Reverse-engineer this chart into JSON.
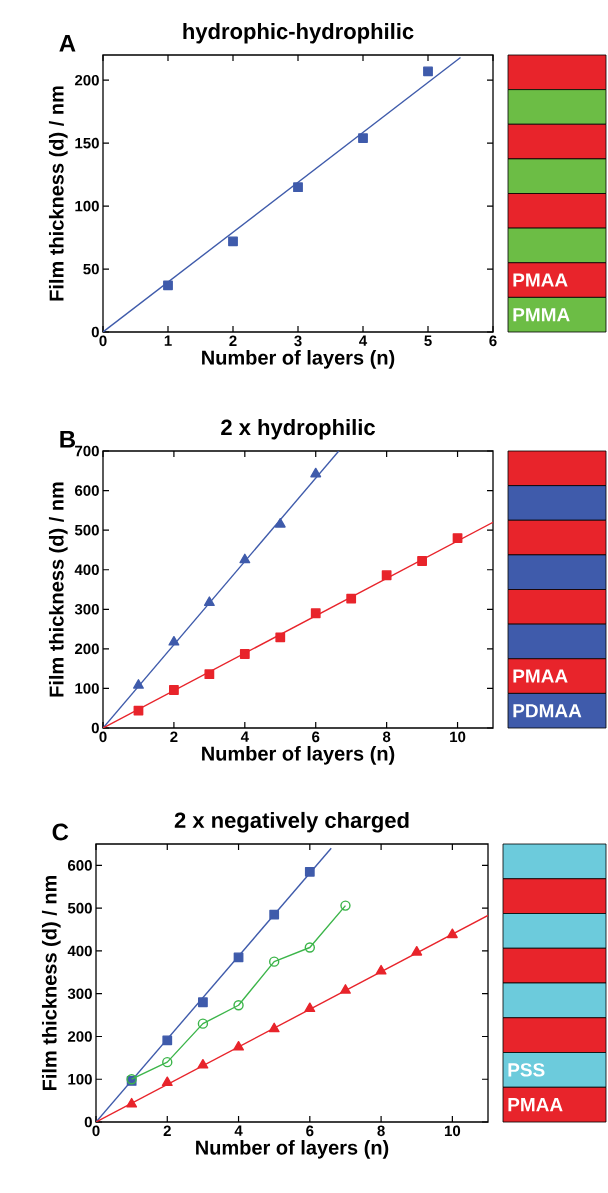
{
  "chart_data": [
    {
      "type": "scatter",
      "title": "hydrophic-hydrophilic",
      "xlabel": "Number of layers (n)",
      "ylabel": "Film thickness (d) / nm",
      "xlim": [
        0,
        6
      ],
      "ylim": [
        0,
        220
      ],
      "xticks": [
        0,
        1,
        2,
        3,
        4,
        5,
        6
      ],
      "yticks": [
        0,
        50,
        100,
        150,
        200
      ],
      "annotations": [
        "A",
        "PMAA",
        "PMMA"
      ],
      "series": [
        {
          "marker": "square",
          "color": "#3f5bab",
          "x": [
            1,
            2,
            3,
            4,
            5
          ],
          "values": [
            37,
            72,
            115,
            154,
            207
          ]
        },
        {
          "type": "line",
          "marker": "none",
          "color": "#3f5bab",
          "x": [
            0,
            5.5
          ],
          "values": [
            0,
            218
          ]
        }
      ]
    },
    {
      "type": "scatter",
      "title": "2 x hydrophilic",
      "xlabel": "Number of layers (n)",
      "ylabel": "Film thickness (d) / nm",
      "xlim": [
        0,
        11
      ],
      "ylim": [
        0,
        700
      ],
      "xticks": [
        0,
        2,
        4,
        6,
        8,
        10
      ],
      "yticks": [
        0,
        100,
        200,
        300,
        400,
        500,
        600,
        700
      ],
      "annotations": [
        "B",
        "PMAA",
        "PDMAA"
      ],
      "series": [
        {
          "marker": "triangle",
          "color": "#3f5bab",
          "x": [
            1,
            2,
            3,
            4,
            5,
            6
          ],
          "values": [
            108,
            217,
            317,
            425,
            515,
            642
          ]
        },
        {
          "type": "line",
          "marker": "none",
          "color": "#3f5bab",
          "x": [
            0,
            6.65
          ],
          "values": [
            0,
            700
          ]
        },
        {
          "marker": "square",
          "color": "#e8242b",
          "x": [
            1,
            2,
            3,
            4,
            5,
            6,
            7,
            8,
            9,
            10
          ],
          "values": [
            44,
            96,
            136,
            187,
            229,
            290,
            327,
            386,
            422,
            480
          ]
        },
        {
          "type": "line",
          "marker": "none",
          "color": "#e8242b",
          "x": [
            0,
            11
          ],
          "values": [
            0,
            520
          ]
        }
      ]
    },
    {
      "type": "scatter",
      "title": "2 x negatively charged",
      "xlabel": "Number of layers (n)",
      "ylabel": "Film thickness (d) / nm",
      "xlim": [
        0,
        11
      ],
      "ylim": [
        0,
        650
      ],
      "xticks": [
        0,
        2,
        4,
        6,
        8,
        10
      ],
      "yticks": [
        0,
        100,
        200,
        300,
        400,
        500,
        600
      ],
      "annotations": [
        "C",
        "PSS",
        "PMAA"
      ],
      "series": [
        {
          "marker": "square",
          "color": "#3f5bab",
          "x": [
            1,
            2,
            3,
            4,
            5,
            6
          ],
          "values": [
            96,
            191,
            280,
            385,
            485,
            585
          ]
        },
        {
          "type": "line",
          "marker": "none",
          "color": "#3f5bab",
          "x": [
            0,
            6.6
          ],
          "values": [
            0,
            640
          ]
        },
        {
          "type": "line",
          "marker": "circle",
          "color": "#3cb54a",
          "x": [
            1,
            2,
            3,
            4,
            5,
            6,
            7
          ],
          "values": [
            100,
            140,
            230,
            273,
            375,
            408,
            506
          ]
        },
        {
          "marker": "triangle",
          "color": "#e8242b",
          "x": [
            1,
            2,
            3,
            4,
            5,
            6,
            7,
            8,
            9,
            10
          ],
          "values": [
            42,
            92,
            133,
            175,
            218,
            265,
            308,
            353,
            397,
            438
          ]
        },
        {
          "type": "line",
          "marker": "none",
          "color": "#e8242b",
          "x": [
            0,
            11
          ],
          "values": [
            0,
            483
          ]
        }
      ]
    }
  ]
}
